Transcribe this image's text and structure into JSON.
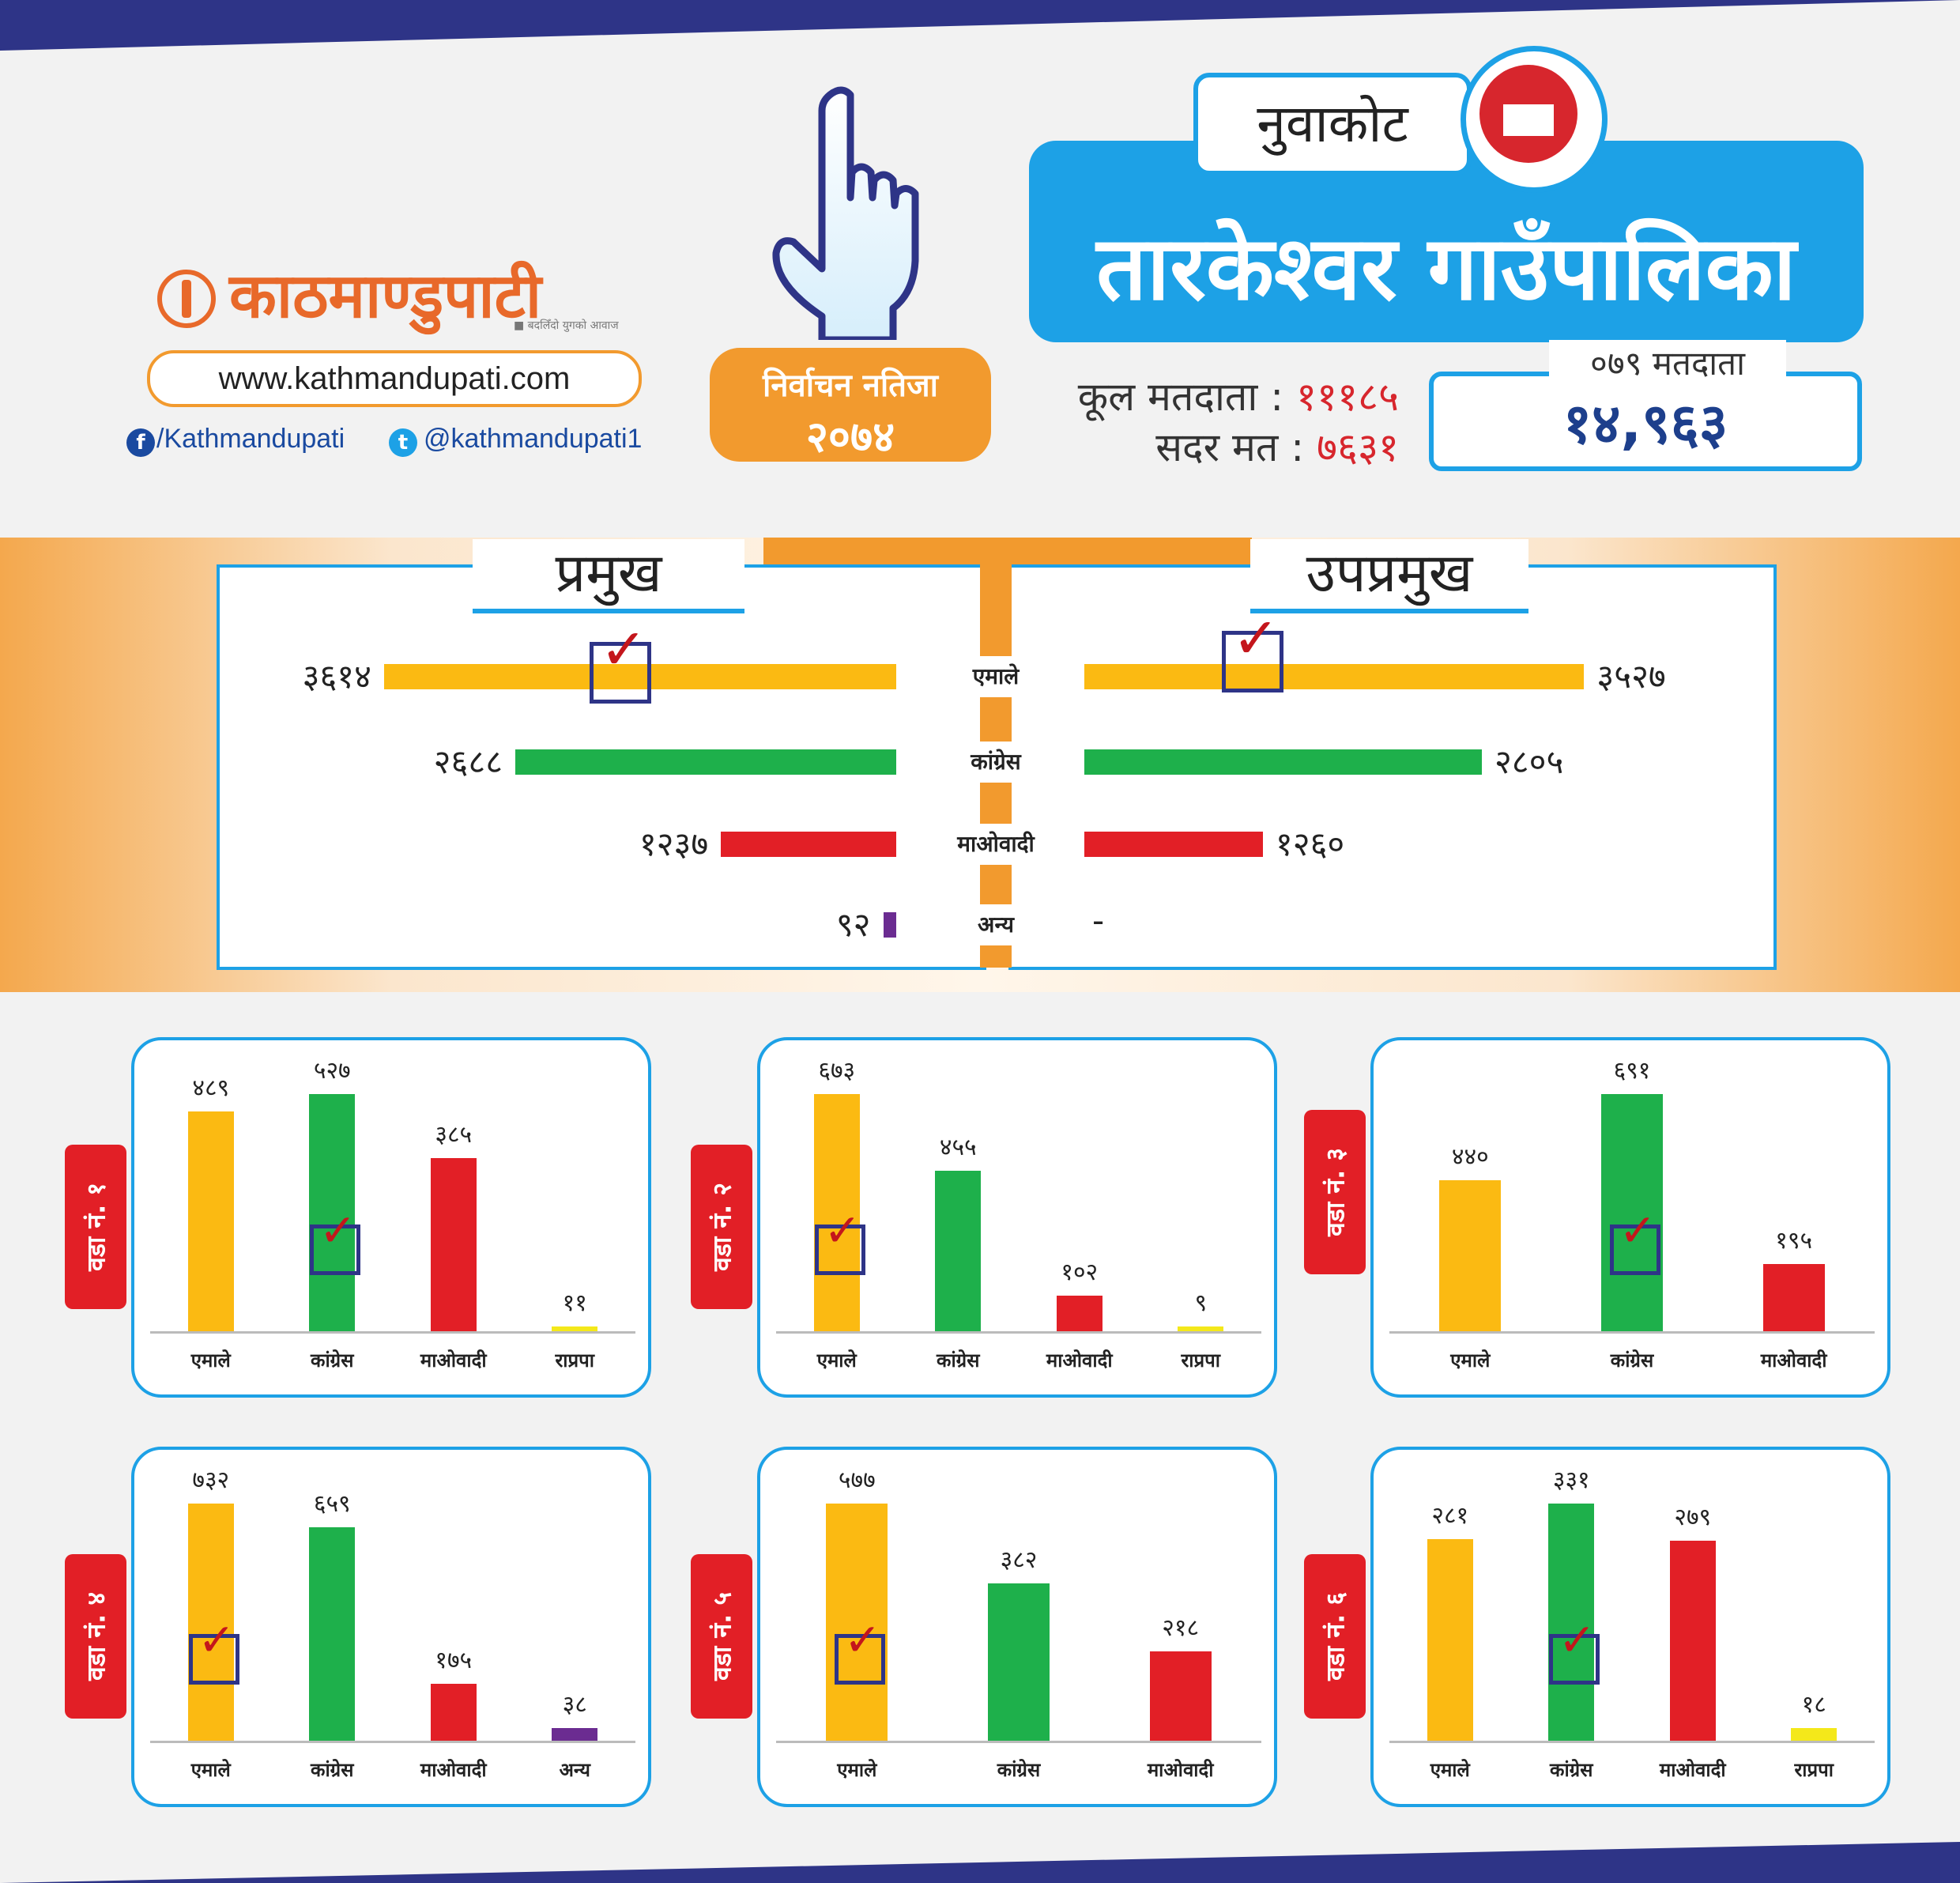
{
  "header": {
    "logo": "काठमाण्डुपाटी",
    "logo_tagline": "■ बदलिँदो युगको आवाज",
    "website": "www.kathmandupati.com",
    "facebook": "/Kathmandupati",
    "twitter": "@kathmandupati1",
    "result_label": "निर्वाचन नतिजा",
    "result_year": "२०७४",
    "district": "नुवाकोट",
    "municipality": "तारकेश्वर गाउँपालिका",
    "total_voters_label": "कूल मतदाता :",
    "total_voters": "१११८५",
    "valid_votes_label": "सदर मत :",
    "valid_votes": "७६३१",
    "voters_079_label": "०७९ मतदाता",
    "voters_079": "१४,९६३"
  },
  "colors": {
    "emale": "#fbba12",
    "congress": "#1eb04b",
    "maoist": "#e21f26",
    "other": "#6b2c91",
    "rpp": "#f4e81a",
    "accent_blue": "#1da1e6",
    "accent_orange": "#f29a2e"
  },
  "icons": [
    "finger-vote-icon",
    "ballot-logo-icon",
    "facebook-icon",
    "twitter-icon",
    "check-icon"
  ],
  "chart_data": [
    {
      "type": "bar",
      "title": "प्रमुख",
      "categories": [
        "एमाले",
        "कांग्रेस",
        "माओवादी",
        "अन्य"
      ],
      "values": [
        3614,
        2688,
        1237,
        92
      ],
      "labels": [
        "३६१४",
        "२६८८",
        "१२३७",
        "९२"
      ],
      "winner": "एमाले"
    },
    {
      "type": "bar",
      "title": "उपप्रमुख",
      "categories": [
        "एमाले",
        "कांग्रेस",
        "माओवादी",
        "अन्य"
      ],
      "values": [
        3527,
        2805,
        1260,
        null
      ],
      "labels": [
        "३५२७",
        "२८०५",
        "१२६०",
        "-"
      ],
      "winner": "एमाले"
    },
    {
      "type": "bar",
      "title": "वडा नं. १",
      "categories": [
        "एमाले",
        "कांग्रेस",
        "माओवादी",
        "राप्रपा"
      ],
      "values": [
        489,
        527,
        385,
        11
      ],
      "labels": [
        "४८९",
        "५२७",
        "३८५",
        "११"
      ],
      "winner": "कांग्रेस"
    },
    {
      "type": "bar",
      "title": "वडा नं. २",
      "categories": [
        "एमाले",
        "कांग्रेस",
        "माओवादी",
        "राप्रपा"
      ],
      "values": [
        673,
        455,
        102,
        9
      ],
      "labels": [
        "६७३",
        "४५५",
        "१०२",
        "९"
      ],
      "winner": "एमाले"
    },
    {
      "type": "bar",
      "title": "वडा नं. ३",
      "categories": [
        "एमाले",
        "कांग्रेस",
        "माओवादी"
      ],
      "values": [
        440,
        691,
        195
      ],
      "labels": [
        "४४०",
        "६९१",
        "१९५"
      ],
      "winner": "कांग्रेस"
    },
    {
      "type": "bar",
      "title": "वडा नं. ४",
      "categories": [
        "एमाले",
        "कांग्रेस",
        "माओवादी",
        "अन्य"
      ],
      "values": [
        732,
        659,
        175,
        38
      ],
      "labels": [
        "७३२",
        "६५९",
        "१७५",
        "३८"
      ],
      "winner": "एमाले"
    },
    {
      "type": "bar",
      "title": "वडा नं. ५",
      "categories": [
        "एमाले",
        "कांग्रेस",
        "माओवादी"
      ],
      "values": [
        577,
        382,
        218
      ],
      "labels": [
        "५७७",
        "३८२",
        "२१८"
      ],
      "winner": "एमाले"
    },
    {
      "type": "bar",
      "title": "वडा नं. ६",
      "categories": [
        "एमाले",
        "कांग्रेस",
        "माओवादी",
        "राप्रपा"
      ],
      "values": [
        281,
        331,
        279,
        18
      ],
      "labels": [
        "२८१",
        "३३१",
        "२७९",
        "१८"
      ],
      "winner": "कांग्रेस"
    }
  ]
}
